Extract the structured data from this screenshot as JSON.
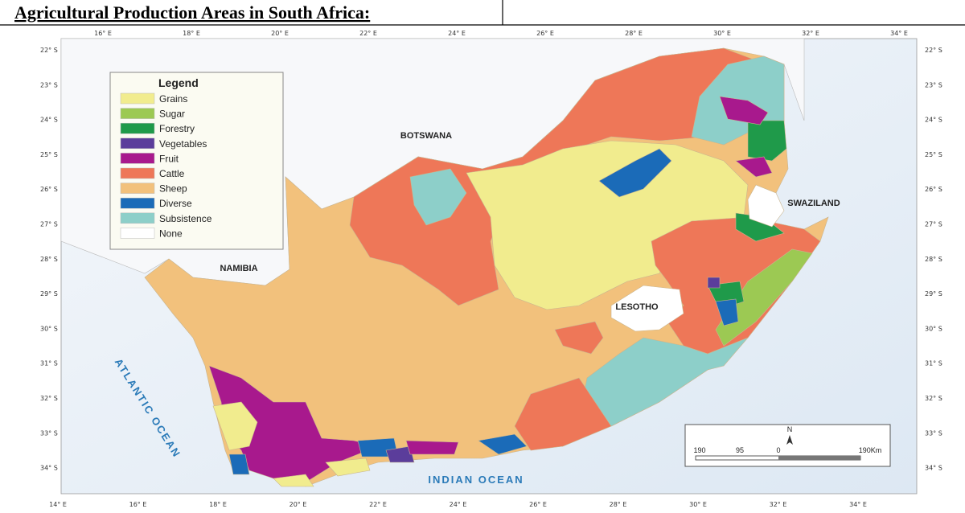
{
  "title": "Agricultural Production Areas in South Africa:",
  "legend": {
    "title": "Legend",
    "items": [
      {
        "name": "Grains",
        "color": "#f1ec8e"
      },
      {
        "name": "Sugar",
        "color": "#9cc953"
      },
      {
        "name": "Forestry",
        "color": "#1f9a4a"
      },
      {
        "name": "Vegetables",
        "color": "#5b3d9b"
      },
      {
        "name": "Fruit",
        "color": "#a8198d"
      },
      {
        "name": "Cattle",
        "color": "#ee7758"
      },
      {
        "name": "Sheep",
        "color": "#f2c17c"
      },
      {
        "name": "Diverse",
        "color": "#1b6bb8"
      },
      {
        "name": "Subsistence",
        "color": "#8dcfc9"
      },
      {
        "name": "None",
        "color": "#ffffff"
      }
    ]
  },
  "countries": [
    "BOTSWANA",
    "NAMIBIA",
    "LESOTHO",
    "SWAZILAND"
  ],
  "oceans": [
    "ATLANTIC OCEAN",
    "INDIAN OCEAN"
  ],
  "longitude_top": [
    "16° E",
    "18° E",
    "20° E",
    "22° E",
    "24° E",
    "26° E",
    "28° E",
    "30° E",
    "32° E",
    "34° E"
  ],
  "longitude_bottom": [
    "14° E",
    "16° E",
    "18° E",
    "20° E",
    "22° E",
    "24° E",
    "26° E",
    "28° E",
    "30° E",
    "32° E",
    "34° E"
  ],
  "latitude_left": [
    "22° S",
    "23° S",
    "24° S",
    "25° S",
    "26° S",
    "27° S",
    "28° S",
    "29° S",
    "30° S",
    "31° S",
    "32° S",
    "33° S",
    "34° S"
  ],
  "latitude_right": [
    "22° S",
    "23° S",
    "24° S",
    "25° S",
    "26° S",
    "27° S",
    "28° S",
    "29° S",
    "30° S",
    "31° S",
    "32° S",
    "33° S",
    "34° S"
  ],
  "scale_bar": {
    "north": "N",
    "labels": [
      "190",
      "95",
      "0",
      "190Km"
    ]
  }
}
